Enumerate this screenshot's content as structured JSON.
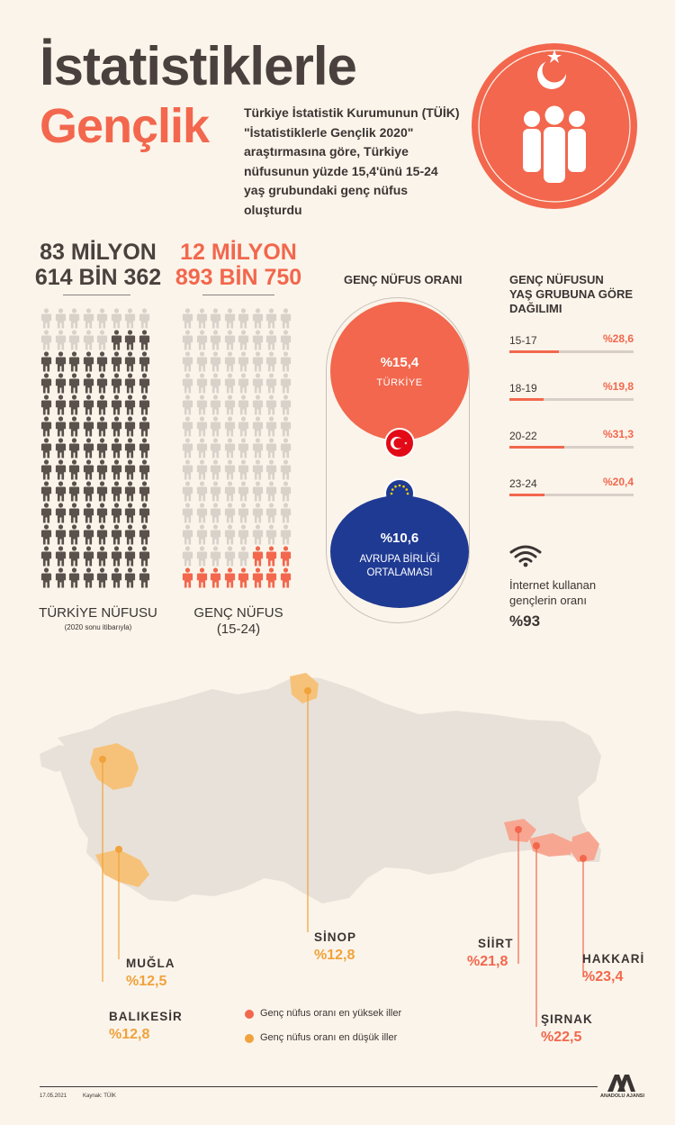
{
  "header": {
    "title_line1": "İstatistiklerle",
    "title_line2": "Gençlik",
    "intro": "Türkiye İstatistik Kurumunun (TÜİK) \"İstatistiklerle Gençlik 2020\" araştırmasına göre, Türkiye nüfusunun yüzde 15,4'ünü 15-24 yaş grubundaki genç nüfus oluşturdu"
  },
  "population": {
    "total_line1": "83 MİLYON",
    "total_line2": "614 BİN 362",
    "total_caption": "TÜRKİYE NÜFUSU",
    "total_note": "(2020 sonu itibarıyla)",
    "youth_line1": "12 MİLYON",
    "youth_line2": "893 BİN 750",
    "youth_caption_line1": "GENÇ NÜFUS",
    "youth_caption_line2": "(15-24)",
    "colors": {
      "dark": "#5a504c",
      "light": "#d8d2cb",
      "orange": "#f2674d"
    }
  },
  "ratio": {
    "title": "GENÇ NÜFUS ORANI",
    "turkey_value": "%15,4",
    "turkey_label": "TÜRKİYE",
    "eu_value": "%10,6",
    "eu_label_line1": "AVRUPA BİRLİĞİ",
    "eu_label_line2": "ORTALAMASI",
    "colors": {
      "turkey": "#f2674d",
      "eu": "#1f3a93"
    }
  },
  "age_distribution": {
    "title_line1": "GENÇ NÜFUSUN",
    "title_line2": "YAŞ GRUBUNA GÖRE",
    "title_line3": "DAĞILIMI",
    "groups": [
      {
        "label": "15-17",
        "value": "%28,6",
        "fraction": 0.286
      },
      {
        "label": "18-19",
        "value": "%19,8",
        "fraction": 0.198
      },
      {
        "label": "20-22",
        "value": "%31,3",
        "fraction": 0.313
      },
      {
        "label": "23-24",
        "value": "%20,4",
        "fraction": 0.204
      }
    ]
  },
  "internet": {
    "label_line1": "İnternet kullanan",
    "label_line2": "gençlerin oranı",
    "value": "%93",
    "icon": "wifi-icon"
  },
  "map": {
    "provinces": [
      {
        "name": "MUĞLA",
        "value": "%12,5",
        "group": "low"
      },
      {
        "name": "BALIKESİR",
        "value": "%12,8",
        "group": "low"
      },
      {
        "name": "SİNOP",
        "value": "%12,8",
        "group": "low"
      },
      {
        "name": "SİİRT",
        "value": "%21,8",
        "group": "high"
      },
      {
        "name": "ŞIRNAK",
        "value": "%22,5",
        "group": "high"
      },
      {
        "name": "HAKKARİ",
        "value": "%23,4",
        "group": "high"
      }
    ],
    "legend_high": "Genç nüfus oranı en yüksek iller",
    "legend_low": "Genç nüfus oranı en düşük iller",
    "colors": {
      "land": "#e8e1d9",
      "high": "#f2674d",
      "low": "#f0a23c"
    }
  },
  "footer": {
    "date": "17.05.2021",
    "source": "Kaynak: TÜİK",
    "brand": "ANADOLU AJANSI"
  }
}
